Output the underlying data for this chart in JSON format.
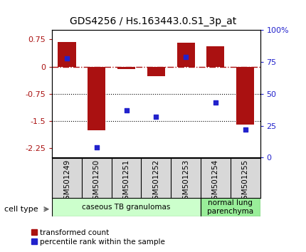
{
  "title": "GDS4256 / Hs.163443.0.S1_3p_at",
  "samples": [
    "GSM501249",
    "GSM501250",
    "GSM501251",
    "GSM501252",
    "GSM501253",
    "GSM501254",
    "GSM501255"
  ],
  "bar_values": [
    0.68,
    -1.75,
    -0.07,
    -0.27,
    0.65,
    0.55,
    -1.6
  ],
  "dot_values": [
    78,
    8,
    37,
    32,
    79,
    43,
    22
  ],
  "ylim_left": [
    -2.5,
    1.0
  ],
  "ylim_right": [
    0,
    100
  ],
  "yticks_left": [
    0.75,
    0,
    -0.75,
    -1.5,
    -2.25
  ],
  "yticks_right": [
    100,
    75,
    50,
    25,
    0
  ],
  "bar_color": "#aa1111",
  "dot_color": "#2222cc",
  "hline_y": 0,
  "dotted_lines": [
    -0.75,
    -1.5
  ],
  "cell_types": [
    {
      "label": "caseous TB granulomas",
      "samples": [
        0,
        1,
        2,
        3,
        4
      ],
      "color": "#ccffcc"
    },
    {
      "label": "normal lung\nparenchyma",
      "samples": [
        5,
        6
      ],
      "color": "#99ee99"
    }
  ],
  "cell_type_label": "cell type",
  "legend_bar": "transformed count",
  "legend_dot": "percentile rank within the sample",
  "bar_width": 0.6,
  "bg_color": "#ffffff",
  "right_labels": [
    "100%",
    "75",
    "50",
    "25",
    "0"
  ]
}
